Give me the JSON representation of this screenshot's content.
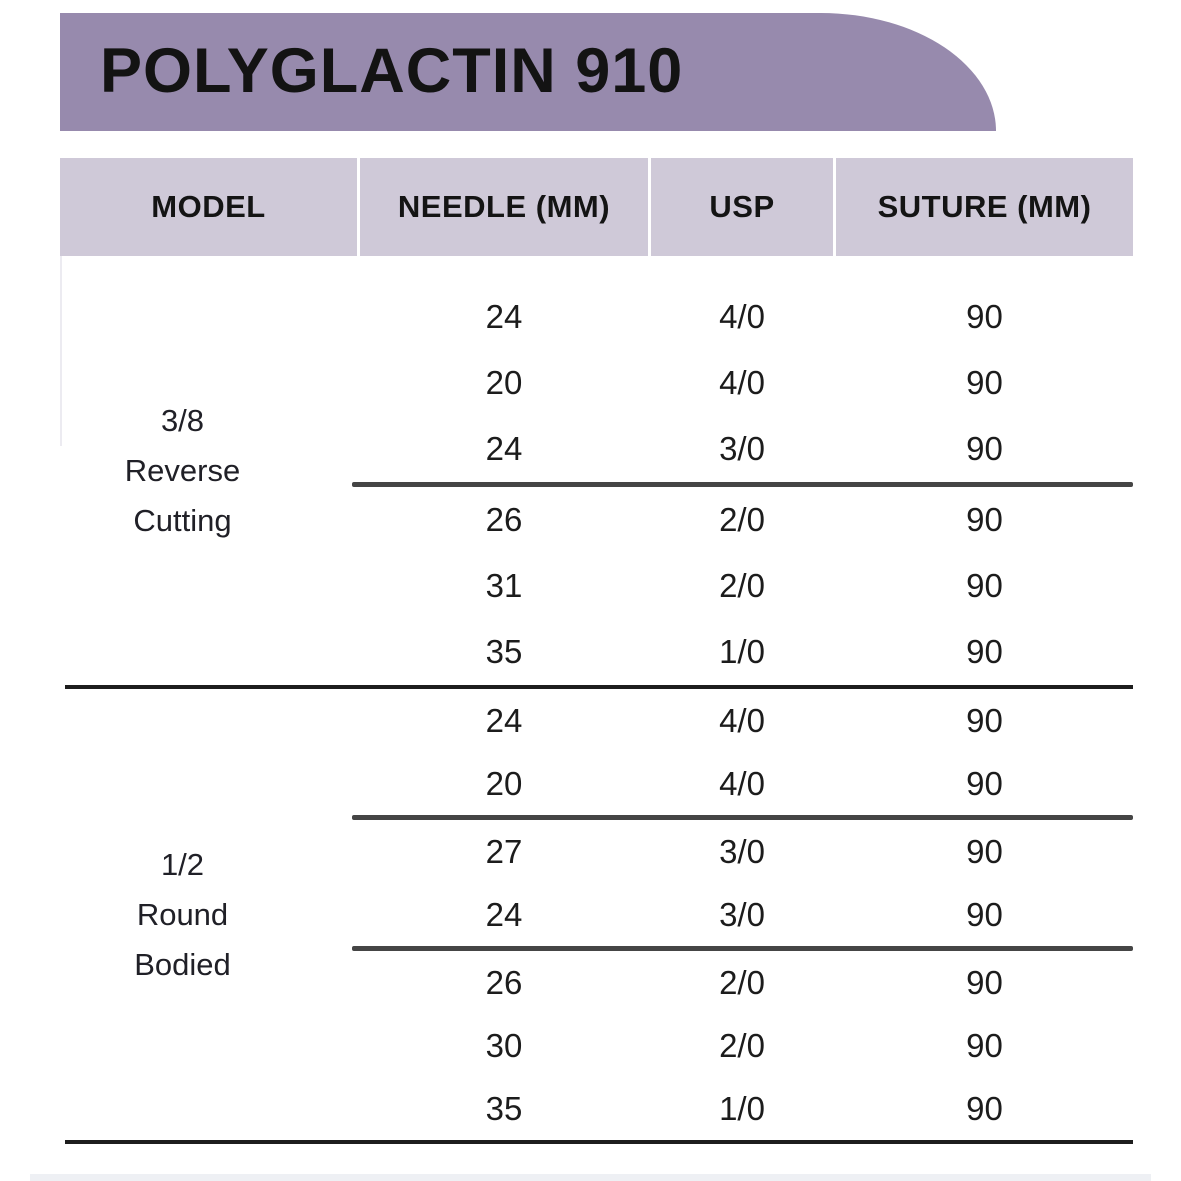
{
  "title": "POLYGLACTIN 910",
  "colors": {
    "banner": "#978aad",
    "header_row": "#cfc9d8",
    "divider": "#1d1d1d",
    "segment_divider": "#454545",
    "bottom_strip": "#eef0f4"
  },
  "table": {
    "columns": [
      "MODEL",
      "NEEDLE (MM)",
      "USP",
      "SUTURE (MM)"
    ],
    "groups": [
      {
        "model": [
          "3/8",
          "Reverse",
          "Cutting"
        ],
        "segments": [
          {
            "rows": [
              [
                "24",
                "4/0",
                "90"
              ],
              [
                "20",
                "4/0",
                "90"
              ],
              [
                "24",
                "3/0",
                "90"
              ]
            ]
          },
          {
            "rows": [
              [
                "26",
                "2/0",
                "90"
              ],
              [
                "31",
                "2/0",
                "90"
              ],
              [
                "35",
                "1/0",
                "90"
              ]
            ]
          }
        ]
      },
      {
        "model": [
          "1/2",
          "Round",
          "Bodied"
        ],
        "segments": [
          {
            "rows": [
              [
                "24",
                "4/0",
                "90"
              ],
              [
                "20",
                "4/0",
                "90"
              ]
            ]
          },
          {
            "rows": [
              [
                "27",
                "3/0",
                "90"
              ],
              [
                "24",
                "3/0",
                "90"
              ]
            ]
          },
          {
            "rows": [
              [
                "26",
                "2/0",
                "90"
              ],
              [
                "30",
                "2/0",
                "90"
              ],
              [
                "35",
                "1/0",
                "90"
              ]
            ]
          }
        ]
      }
    ]
  }
}
